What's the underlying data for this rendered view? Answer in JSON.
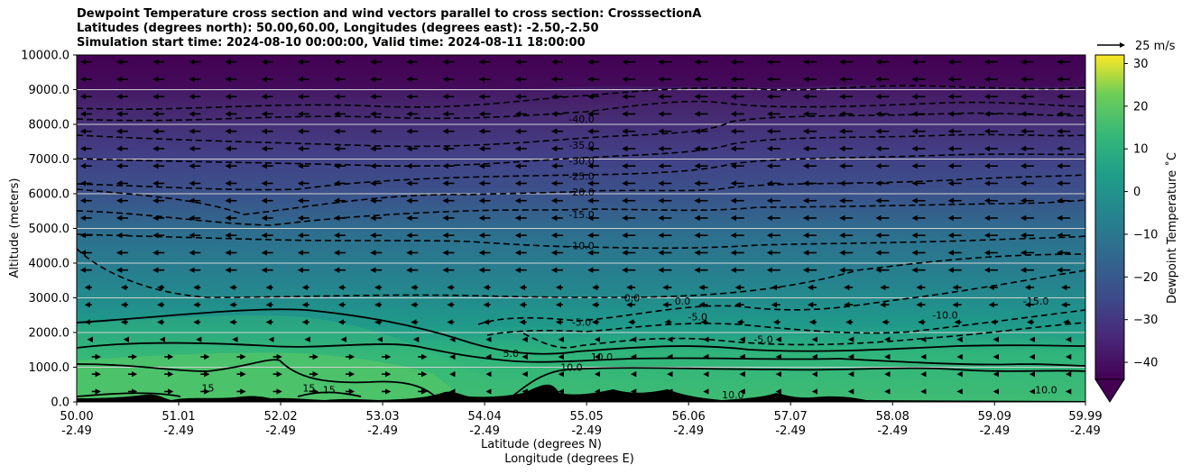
{
  "chart_data": {
    "type": "heatmap",
    "title_lines": [
      "Dewpoint Temperature cross section and wind vectors parallel to cross section: CrosssectionA",
      "Latitudes (degrees north): 50.00,60.00, Longitudes (degrees east): -2.50,-2.50",
      "Simulation start time: 2024-08-10 00:00:00, Valid time: 2024-08-11 18:00:00"
    ],
    "ylabel": "Altitude (meters)",
    "xlabel_lines": [
      "Latitude (degrees N)",
      "Longitude (degrees E)"
    ],
    "x_ticks": [
      {
        "lat": "50.00",
        "lon": "-2.49"
      },
      {
        "lat": "51.01",
        "lon": "-2.49"
      },
      {
        "lat": "52.02",
        "lon": "-2.49"
      },
      {
        "lat": "53.03",
        "lon": "-2.49"
      },
      {
        "lat": "54.04",
        "lon": "-2.49"
      },
      {
        "lat": "55.05",
        "lon": "-2.49"
      },
      {
        "lat": "56.06",
        "lon": "-2.49"
      },
      {
        "lat": "57.07",
        "lon": "-2.49"
      },
      {
        "lat": "58.08",
        "lon": "-2.49"
      },
      {
        "lat": "59.09",
        "lon": "-2.49"
      },
      {
        "lat": "59.99",
        "lon": "-2.49"
      }
    ],
    "xlim": [
      50.0,
      59.99
    ],
    "y_ticks": [
      "0.0",
      "1000.0",
      "2000.0",
      "3000.0",
      "4000.0",
      "5000.0",
      "6000.0",
      "7000.0",
      "8000.0",
      "9000.0",
      "10000.0"
    ],
    "ylim": [
      0,
      10000
    ],
    "grid": "horizontal",
    "colorbar": {
      "label": "Dewpoint Temperature ˚C",
      "ticks": [
        "30",
        "20",
        "10",
        "0",
        "−10",
        "−20",
        "−30",
        "−40"
      ],
      "tick_values": [
        30,
        20,
        10,
        0,
        -10,
        -20,
        -30,
        -40
      ],
      "range": [
        -44,
        32
      ],
      "extend": "min",
      "colormap": "viridis"
    },
    "quiver_key": "25 m/s",
    "contour_labels": [
      {
        "text": "-40.0",
        "lat": 55.0,
        "alt": 8050
      },
      {
        "text": "-35.0",
        "lat": 55.0,
        "alt": 7300
      },
      {
        "text": "-30.0",
        "lat": 55.0,
        "alt": 6850
      },
      {
        "text": "-25.0",
        "lat": 55.0,
        "alt": 6400
      },
      {
        "text": "-20.0",
        "lat": 55.0,
        "alt": 5950
      },
      {
        "text": "-15.0",
        "lat": 55.0,
        "alt": 5300
      },
      {
        "text": "-10.0",
        "lat": 55.0,
        "alt": 4400
      },
      {
        "text": "0.0",
        "lat": 55.5,
        "alt": 2900
      },
      {
        "text": "0.0",
        "lat": 56.0,
        "alt": 2800
      },
      {
        "text": "-5.0",
        "lat": 56.15,
        "alt": 2350
      },
      {
        "text": "-10.0",
        "lat": 58.6,
        "alt": 2400
      },
      {
        "text": "-15.0",
        "lat": 59.5,
        "alt": 2800
      },
      {
        "text": "-5.0",
        "lat": 55.0,
        "alt": 2200
      },
      {
        "text": "-5.0",
        "lat": 56.8,
        "alt": 1700
      },
      {
        "text": "5.0",
        "lat": 54.3,
        "alt": 1300
      },
      {
        "text": "10.0",
        "lat": 55.2,
        "alt": 1200
      },
      {
        "text": "10.0",
        "lat": 54.9,
        "alt": 900
      },
      {
        "text": "10.0",
        "lat": 56.5,
        "alt": 100
      },
      {
        "text": "10.0",
        "lat": 59.6,
        "alt": 250
      },
      {
        "text": "15",
        "lat": 51.3,
        "alt": 300
      },
      {
        "text": "15",
        "lat": 52.3,
        "alt": 300
      },
      {
        "text": "15",
        "lat": 52.5,
        "alt": 250
      }
    ],
    "wind": "northerly-to-southerly flow mostly pointing left (negative along section) aloft, rightward near surface south of 54N"
  }
}
